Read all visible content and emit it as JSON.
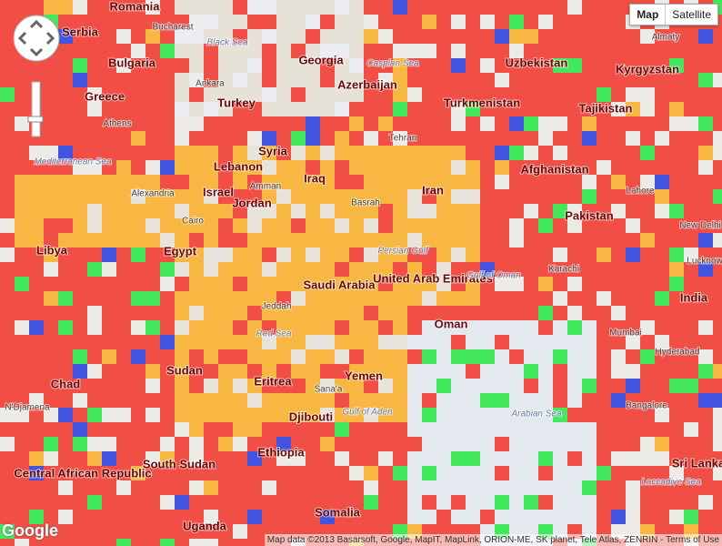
{
  "controls": {
    "map": "Map",
    "satellite": "Satellite"
  },
  "logo": "Google",
  "attribution": "Map data ©2013 Basarsoft, Google, MapIT, MapLink, ORION-ME, SK planet, Tele Atlas, ZENRIN - Terms of Use",
  "labels": [
    "Romania",
    "Serbia",
    "Bulgaria",
    "Greece",
    "Turkey",
    "Georgia",
    "Azerbaijan",
    "Uzbekistan",
    "Turkmenistan",
    "Tajikistan",
    "Kyrgyzstan",
    "Syria",
    "Lebanon",
    "Iraq",
    "Israel",
    "Jordan",
    "Iran",
    "Afghanistan",
    "Pakistan",
    "Libya",
    "Egypt",
    "Saudi Arabia",
    "United Arab Emirates",
    "Oman",
    "India",
    "Sudan",
    "Chad",
    "Eritrea",
    "Yemen",
    "Djibouti",
    "Ethiopia",
    "South Sudan",
    "Central African Republic",
    "Somalia",
    "Uganda",
    "Sri Lanka",
    "Bucharest",
    "Ankara",
    "Athens",
    "Almaty",
    "Tehran",
    "Cairo",
    "Alexandria",
    "Amman",
    "Basrah",
    "Lahore",
    "New Delhi",
    "Karachi",
    "Lucknow",
    "Mumbai",
    "Hyderabad",
    "Bangalore",
    "Jeddah",
    "Sana'a",
    "N'Djamena",
    "Black Sea",
    "Caspian Sea",
    "Persian Gulf",
    "Gulf of Oman",
    "Red Sea",
    "Gulf of Aden",
    "Arabian Sea",
    "Mediterranean Sea",
    "Laccadive Sea"
  ]
}
